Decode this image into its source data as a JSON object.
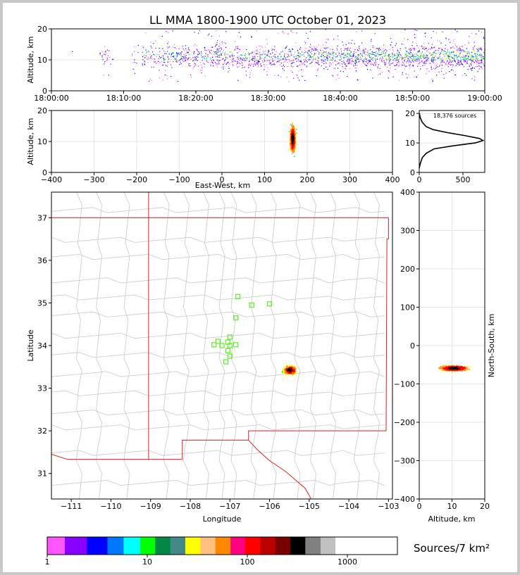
{
  "title": "LL MMA 1800-1900 UTC October 01, 2023",
  "colors": {
    "frame": "#c8c8c8",
    "state_border": "#dd2222",
    "county_border": "#c8c8c8",
    "station": "#66ee33",
    "grid": "#e4e4e4"
  },
  "chart_data": [
    {
      "id": "time_height",
      "type": "scatter",
      "ylabel": "Altitude, km",
      "xlim": [
        "18:00:00",
        "19:00:00"
      ],
      "ylim": [
        0,
        20
      ],
      "x_ticks": [
        "18:00:00",
        "18:10:00",
        "18:20:00",
        "18:30:00",
        "18:40:00",
        "18:50:00",
        "19:00:00"
      ],
      "y_ticks": [
        0,
        10,
        20
      ],
      "activity_minutes": [
        {
          "start": 2.7,
          "end": 2.9,
          "density": 0.1
        },
        {
          "start": 6.5,
          "end": 8.5,
          "density": 0.25
        },
        {
          "start": 11,
          "end": 12,
          "density": 0.2
        },
        {
          "start": 12.5,
          "end": 17,
          "density": 0.45
        },
        {
          "start": 17,
          "end": 29,
          "density": 0.6
        },
        {
          "start": 29,
          "end": 34,
          "density": 0.55
        },
        {
          "start": 34,
          "end": 42,
          "density": 0.7
        },
        {
          "start": 42,
          "end": 49,
          "density": 0.75
        },
        {
          "start": 49,
          "end": 55,
          "density": 0.9
        },
        {
          "start": 55,
          "end": 60,
          "density": 1.0
        }
      ]
    },
    {
      "id": "ew_height",
      "type": "scatter",
      "xlabel": "East-West, km",
      "ylabel": "Altitude, km",
      "xlim": [
        -400,
        400
      ],
      "ylim": [
        0,
        20
      ],
      "x_ticks": [
        -400,
        -300,
        -200,
        -100,
        0,
        100,
        200,
        300,
        400
      ],
      "y_ticks": [
        0,
        10,
        20
      ],
      "cluster": {
        "x_center": 165,
        "x_spread": 8,
        "z_center": 11,
        "z_min": 2.5,
        "z_max": 20
      }
    },
    {
      "id": "altitude_histogram",
      "type": "line",
      "annotation": "18,376 sources",
      "xlim": [
        0,
        750
      ],
      "ylim": [
        0,
        21
      ],
      "x_ticks": [
        0,
        500
      ],
      "y_ticks": [
        0,
        10,
        20
      ],
      "profile": [
        {
          "z": 1.5,
          "count": 0
        },
        {
          "z": 3,
          "count": 12
        },
        {
          "z": 5,
          "count": 35
        },
        {
          "z": 6.5,
          "count": 80
        },
        {
          "z": 8,
          "count": 170
        },
        {
          "z": 9,
          "count": 380
        },
        {
          "z": 10,
          "count": 640
        },
        {
          "z": 10.8,
          "count": 730
        },
        {
          "z": 11.5,
          "count": 690
        },
        {
          "z": 12.5,
          "count": 520
        },
        {
          "z": 13.5,
          "count": 320
        },
        {
          "z": 14.5,
          "count": 160
        },
        {
          "z": 15.5,
          "count": 80
        },
        {
          "z": 17,
          "count": 35
        },
        {
          "z": 18.5,
          "count": 12
        },
        {
          "z": 20,
          "count": 2
        }
      ]
    },
    {
      "id": "plan_view",
      "type": "map",
      "xlabel": "Longitude",
      "ylabel": "Latitude",
      "xlim": [
        -111.5,
        -102.9
      ],
      "ylim": [
        30.4,
        37.6
      ],
      "x_ticks": [
        -111,
        -110,
        -109,
        -108,
        -107,
        -106,
        -105,
        -104,
        -103
      ],
      "y_ticks": [
        31,
        32,
        33,
        34,
        35,
        36,
        37
      ],
      "stations": [
        {
          "lon": -106.8,
          "lat": 35.15
        },
        {
          "lon": -106.45,
          "lat": 34.95
        },
        {
          "lon": -106.0,
          "lat": 34.98
        },
        {
          "lon": -106.85,
          "lat": 34.65
        },
        {
          "lon": -107.0,
          "lat": 34.2
        },
        {
          "lon": -107.3,
          "lat": 34.1
        },
        {
          "lon": -107.05,
          "lat": 34.08
        },
        {
          "lon": -107.4,
          "lat": 34.02
        },
        {
          "lon": -107.2,
          "lat": 34.0
        },
        {
          "lon": -107.0,
          "lat": 34.0
        },
        {
          "lon": -106.85,
          "lat": 34.02
        },
        {
          "lon": -107.05,
          "lat": 33.88
        },
        {
          "lon": -107.0,
          "lat": 33.75
        },
        {
          "lon": -107.1,
          "lat": 33.62
        }
      ],
      "cluster": {
        "lon": -105.5,
        "lat": 33.44,
        "dlon": 0.22,
        "dlat": 0.15
      }
    },
    {
      "id": "height_ns",
      "type": "scatter",
      "xlabel": "Altitude, km",
      "ylabel": "North-South, km",
      "xlim": [
        0,
        20
      ],
      "ylim": [
        -400,
        400
      ],
      "x_ticks": [
        0,
        10,
        20
      ],
      "y_ticks": [
        -400,
        -300,
        -200,
        -100,
        0,
        100,
        200,
        300,
        400
      ],
      "cluster": {
        "z_center": 10.5,
        "z_min": 2,
        "z_max": 20,
        "ns_center": -58,
        "ns_spread": 10
      }
    }
  ],
  "colorbar": {
    "label": "Sources/7 km²",
    "tick_labels": [
      "1",
      "10",
      "100",
      "1000"
    ],
    "colors": [
      "#ff55ff",
      "#8800ff",
      "#0000ff",
      "#0077ff",
      "#00ffff",
      "#00ff00",
      "#008844",
      "#448888",
      "#ffff00",
      "#ffc080",
      "#ff8800",
      "#ff0080",
      "#ff0000",
      "#bb0000",
      "#770000",
      "#000000",
      "#808080",
      "#c0c0c0",
      "#ffffff"
    ]
  }
}
